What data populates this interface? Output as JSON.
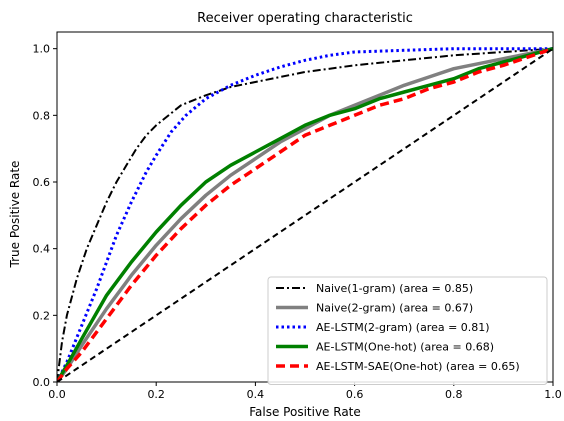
{
  "chart_data": {
    "type": "line",
    "title": "Receiver operating characteristic",
    "xlabel": "False Positive Rate",
    "ylabel": "True Positive Rate",
    "xlim": [
      0.0,
      1.0
    ],
    "ylim": [
      0.0,
      1.05
    ],
    "x_ticks": [
      "0.0",
      "0.2",
      "0.4",
      "0.6",
      "0.8",
      "1.0"
    ],
    "y_ticks": [
      "0.0",
      "0.2",
      "0.4",
      "0.6",
      "0.8",
      "1.0"
    ],
    "grid": false,
    "legend_position": "lower-right",
    "series": [
      {
        "name": "Naive(1-gram) (area = 0.85)",
        "color": "#000000",
        "style": "dashdot",
        "points": [
          [
            0,
            0
          ],
          [
            0.005,
            0.06
          ],
          [
            0.01,
            0.12
          ],
          [
            0.02,
            0.2
          ],
          [
            0.04,
            0.31
          ],
          [
            0.06,
            0.4
          ],
          [
            0.08,
            0.47
          ],
          [
            0.1,
            0.54
          ],
          [
            0.12,
            0.6
          ],
          [
            0.14,
            0.65
          ],
          [
            0.16,
            0.7
          ],
          [
            0.18,
            0.74
          ],
          [
            0.2,
            0.77
          ],
          [
            0.25,
            0.83
          ],
          [
            0.3,
            0.86
          ],
          [
            0.35,
            0.885
          ],
          [
            0.4,
            0.9
          ],
          [
            0.45,
            0.915
          ],
          [
            0.5,
            0.93
          ],
          [
            0.55,
            0.94
          ],
          [
            0.6,
            0.95
          ],
          [
            0.7,
            0.965
          ],
          [
            0.8,
            0.98
          ],
          [
            0.9,
            0.99
          ],
          [
            1.0,
            1.0
          ]
        ]
      },
      {
        "name": "Naive(2-gram) (area = 0.67)",
        "color": "#808080",
        "style": "solid-thick",
        "points": [
          [
            0,
            0
          ],
          [
            0.02,
            0.04
          ],
          [
            0.05,
            0.11
          ],
          [
            0.1,
            0.22
          ],
          [
            0.15,
            0.32
          ],
          [
            0.2,
            0.41
          ],
          [
            0.25,
            0.49
          ],
          [
            0.3,
            0.56
          ],
          [
            0.35,
            0.62
          ],
          [
            0.4,
            0.67
          ],
          [
            0.45,
            0.72
          ],
          [
            0.5,
            0.76
          ],
          [
            0.55,
            0.8
          ],
          [
            0.6,
            0.83
          ],
          [
            0.65,
            0.86
          ],
          [
            0.7,
            0.89
          ],
          [
            0.75,
            0.915
          ],
          [
            0.8,
            0.94
          ],
          [
            0.85,
            0.955
          ],
          [
            0.9,
            0.97
          ],
          [
            0.95,
            0.985
          ],
          [
            1.0,
            1.0
          ]
        ]
      },
      {
        "name": "AE-LSTM(2-gram) (area = 0.81)",
        "color": "#0000ff",
        "style": "dotted",
        "points": [
          [
            0,
            0
          ],
          [
            0.02,
            0.06
          ],
          [
            0.05,
            0.17
          ],
          [
            0.08,
            0.28
          ],
          [
            0.1,
            0.36
          ],
          [
            0.12,
            0.44
          ],
          [
            0.15,
            0.54
          ],
          [
            0.18,
            0.63
          ],
          [
            0.2,
            0.68
          ],
          [
            0.23,
            0.75
          ],
          [
            0.26,
            0.8
          ],
          [
            0.3,
            0.85
          ],
          [
            0.35,
            0.89
          ],
          [
            0.4,
            0.92
          ],
          [
            0.45,
            0.945
          ],
          [
            0.5,
            0.965
          ],
          [
            0.55,
            0.98
          ],
          [
            0.6,
            0.99
          ],
          [
            0.7,
            0.995
          ],
          [
            0.8,
            1.0
          ],
          [
            0.9,
            1.0
          ],
          [
            1.0,
            1.0
          ]
        ]
      },
      {
        "name": "AE-LSTM(One-hot) (area = 0.68)",
        "color": "#008000",
        "style": "solid-thick",
        "points": [
          [
            0,
            0
          ],
          [
            0.02,
            0.05
          ],
          [
            0.05,
            0.13
          ],
          [
            0.1,
            0.26
          ],
          [
            0.15,
            0.36
          ],
          [
            0.2,
            0.45
          ],
          [
            0.25,
            0.53
          ],
          [
            0.3,
            0.6
          ],
          [
            0.35,
            0.65
          ],
          [
            0.4,
            0.69
          ],
          [
            0.45,
            0.73
          ],
          [
            0.5,
            0.77
          ],
          [
            0.55,
            0.8
          ],
          [
            0.6,
            0.82
          ],
          [
            0.65,
            0.85
          ],
          [
            0.7,
            0.87
          ],
          [
            0.75,
            0.89
          ],
          [
            0.8,
            0.91
          ],
          [
            0.85,
            0.94
          ],
          [
            0.9,
            0.96
          ],
          [
            0.95,
            0.98
          ],
          [
            1.0,
            1.0
          ]
        ]
      },
      {
        "name": "AE-LSTM-SAE(One-hot) (area = 0.65)",
        "color": "#ff0000",
        "style": "dashed-thick",
        "points": [
          [
            0,
            0
          ],
          [
            0.02,
            0.04
          ],
          [
            0.05,
            0.09
          ],
          [
            0.1,
            0.19
          ],
          [
            0.15,
            0.29
          ],
          [
            0.2,
            0.38
          ],
          [
            0.25,
            0.46
          ],
          [
            0.3,
            0.53
          ],
          [
            0.35,
            0.59
          ],
          [
            0.4,
            0.64
          ],
          [
            0.45,
            0.69
          ],
          [
            0.5,
            0.74
          ],
          [
            0.55,
            0.77
          ],
          [
            0.6,
            0.8
          ],
          [
            0.65,
            0.83
          ],
          [
            0.7,
            0.85
          ],
          [
            0.75,
            0.88
          ],
          [
            0.8,
            0.9
          ],
          [
            0.85,
            0.93
          ],
          [
            0.9,
            0.95
          ],
          [
            0.95,
            0.975
          ],
          [
            1.0,
            1.0
          ]
        ]
      },
      {
        "name": "",
        "color": "#000000",
        "style": "dashed",
        "points": [
          [
            0,
            0
          ],
          [
            1,
            1
          ]
        ]
      }
    ]
  }
}
